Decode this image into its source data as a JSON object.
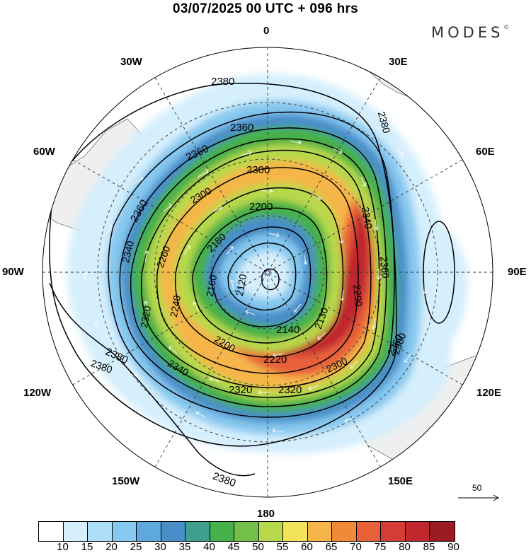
{
  "header": {
    "title": "03/07/2025  00 UTC  + 096 hrs",
    "brand": "MODES",
    "brand_mark": "©"
  },
  "map": {
    "projection": "south-polar-stereographic",
    "longitude_labels": {
      "top": "0",
      "bottom": "180",
      "left": "90W",
      "right": "90E",
      "top_left": "30W",
      "top_right": "30E",
      "upper_left": "60W",
      "upper_right": "60E",
      "lower_left": "120W",
      "lower_right": "120E",
      "bottom_left": "150W",
      "bottom_right": "150E"
    },
    "contour_labels": [
      "2380",
      "2380",
      "2360",
      "2360",
      "2360",
      "2380",
      "2300",
      "2300",
      "2200",
      "2340",
      "2360",
      "2360",
      "2340",
      "2260",
      "2180",
      "2160",
      "2120",
      "2140",
      "2130",
      "2290",
      "2320",
      "2240",
      "2200",
      "2220",
      "2300",
      "2380",
      "2340",
      "2320",
      "2320",
      "2380",
      "2380"
    ],
    "wind_reference": {
      "value": "50",
      "icon": "arrow-right-icon"
    }
  },
  "colorbar": {
    "ticks": [
      "10",
      "15",
      "20",
      "25",
      "30",
      "35",
      "40",
      "45",
      "50",
      "55",
      "60",
      "65",
      "70",
      "75",
      "80",
      "85",
      "90"
    ],
    "colors": [
      "#ffffff",
      "#d5effd",
      "#ade0f8",
      "#86c8ef",
      "#5ea8de",
      "#4a8ec9",
      "#3f9e8e",
      "#46b04a",
      "#72c04a",
      "#b8d84b",
      "#f2e35a",
      "#f6b548",
      "#f08a38",
      "#e8603a",
      "#d63c36",
      "#c0282e",
      "#9c1a22"
    ]
  }
}
